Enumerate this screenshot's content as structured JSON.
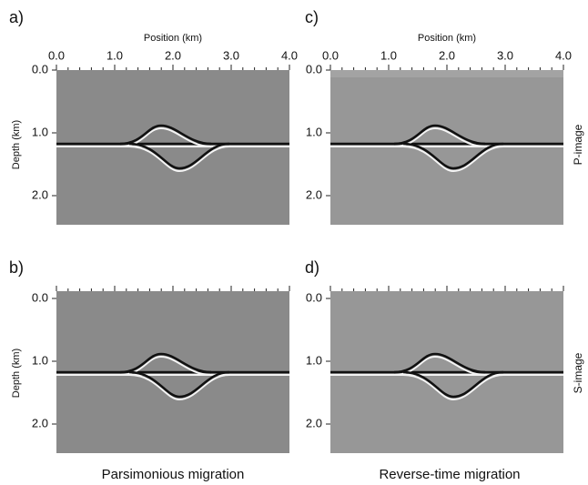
{
  "panels": [
    {
      "letter": "a)",
      "x_title": "Position (km)",
      "x_ticks": [
        "0.0",
        "1.0",
        "2.0",
        "3.0",
        "4.0"
      ],
      "y_title": "Depth (km)",
      "y_ticks": [
        "0.0",
        "1.0",
        "2.0"
      ]
    },
    {
      "letter": "c)",
      "x_title": "Position (km)",
      "x_ticks": [
        "0.0",
        "1.0",
        "2.0",
        "3.0",
        "4.0"
      ],
      "y_ticks": [
        "0.0",
        "1.0",
        "2.0"
      ],
      "side_label": "P-image"
    },
    {
      "letter": "b)",
      "y_title": "Depth (km)",
      "y_ticks": [
        "0.0",
        "1.0",
        "2.0"
      ]
    },
    {
      "letter": "d)",
      "y_ticks": [
        "0.0",
        "1.0",
        "2.0"
      ],
      "side_label": "S-image"
    }
  ],
  "captions": [
    "Parsimonious migration",
    "Reverse-time migration"
  ]
}
